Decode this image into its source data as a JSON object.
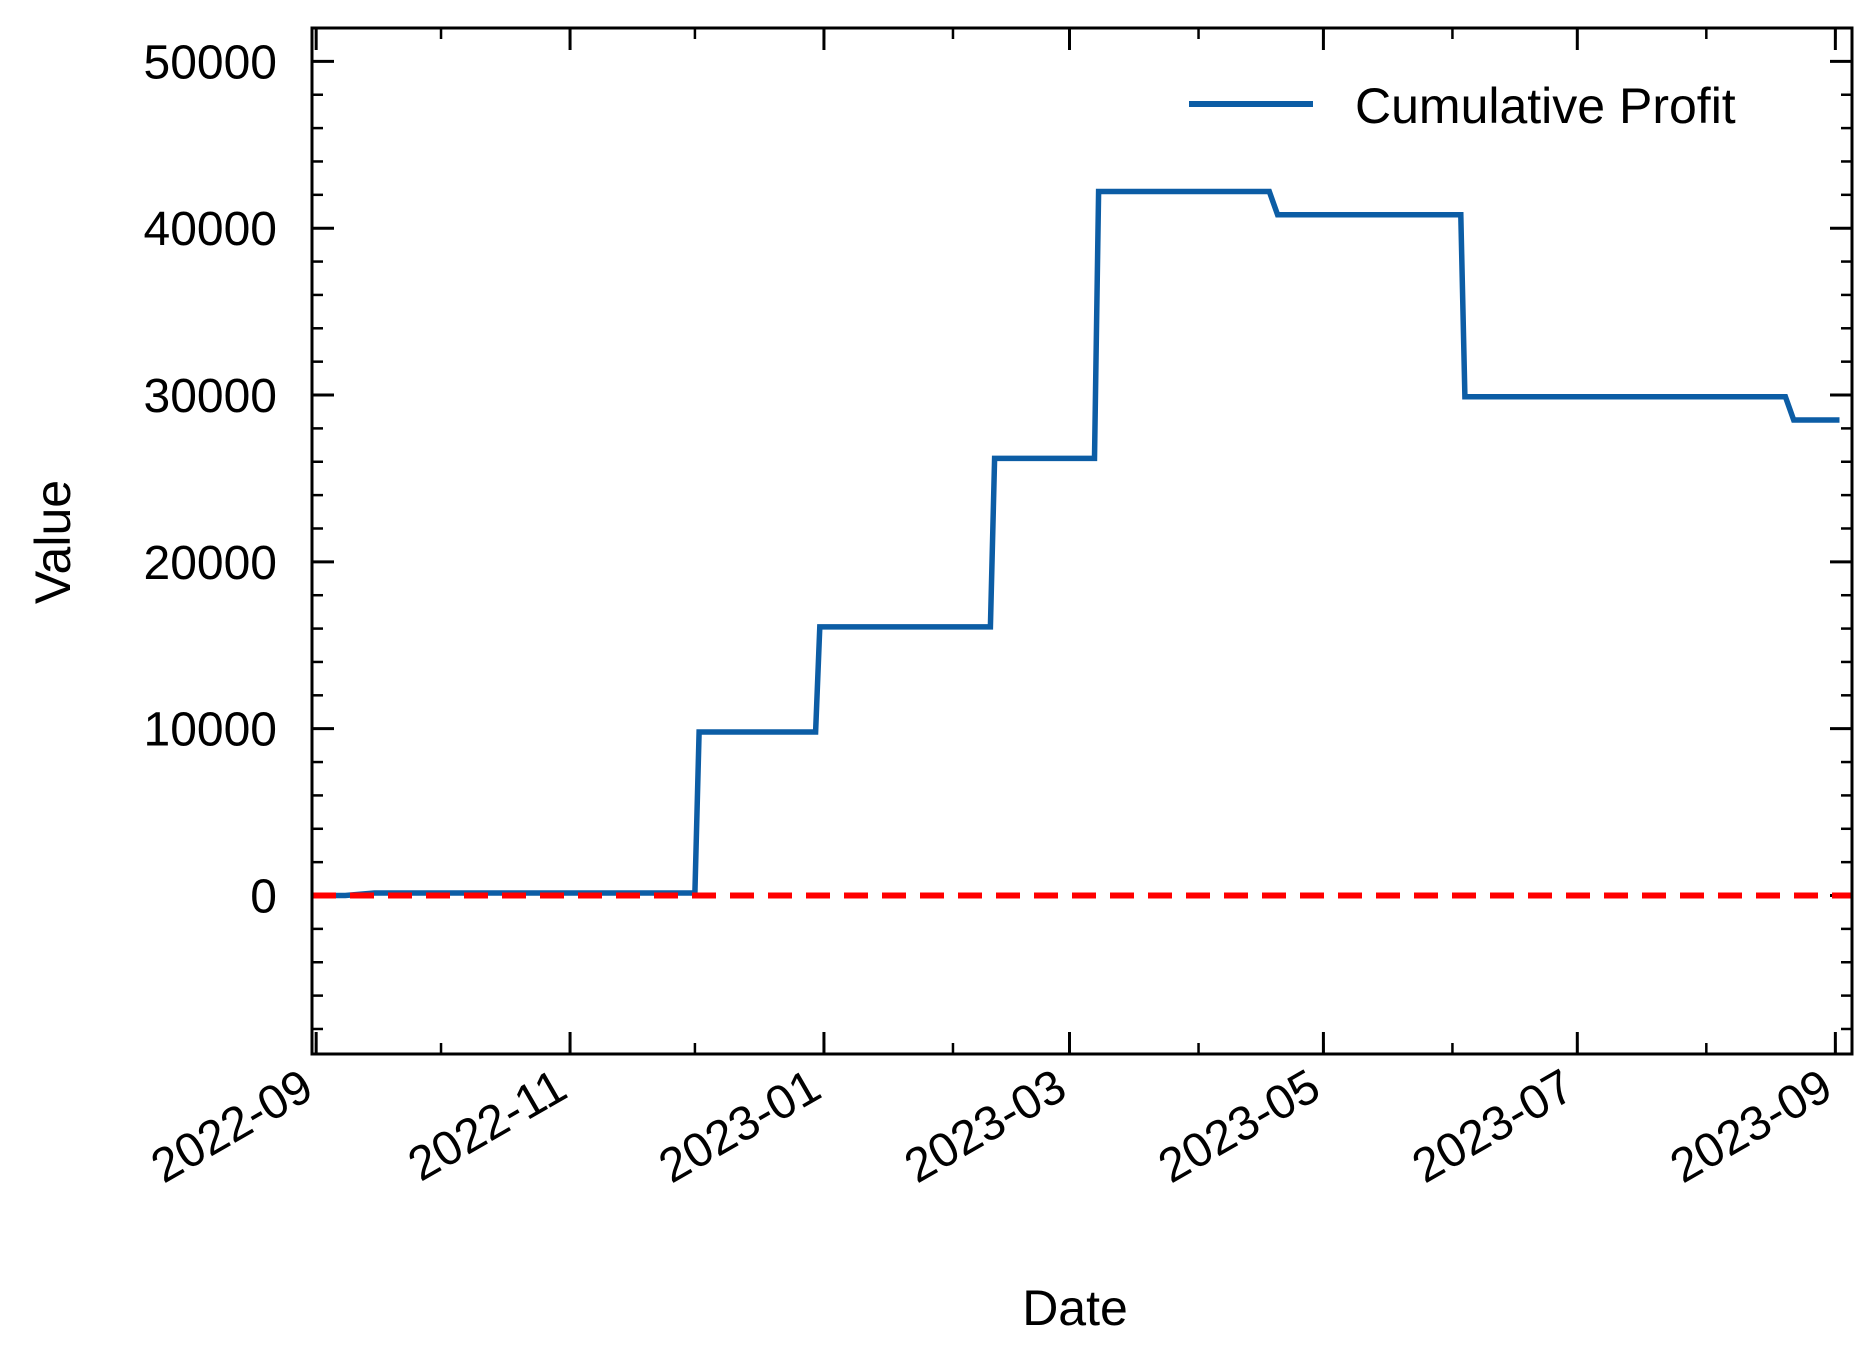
{
  "chart_data": {
    "type": "line",
    "xlabel": "Date",
    "ylabel": "Value",
    "ylim": [
      -9500,
      52000
    ],
    "xlim": [
      "2022-08-31",
      "2023-09-05"
    ],
    "grid": false,
    "legend_position": "top-right",
    "x_ticks": [
      "2022-09",
      "2022-11",
      "2023-01",
      "2023-03",
      "2023-05",
      "2023-07",
      "2023-09"
    ],
    "y_ticks": [
      0,
      10000,
      20000,
      30000,
      40000,
      50000
    ],
    "series": [
      {
        "name": "Cumulative Profit",
        "color": "#0c5da5",
        "style": "solid",
        "x": [
          "2022-09-01",
          "2022-09-08",
          "2022-09-15",
          "2022-12-01",
          "2022-12-02",
          "2022-12-30",
          "2022-12-31",
          "2023-02-10",
          "2023-02-11",
          "2023-03-07",
          "2023-03-08",
          "2023-04-18",
          "2023-04-20",
          "2023-06-03",
          "2023-06-04",
          "2023-08-20",
          "2023-08-22",
          "2023-09-02"
        ],
        "values": [
          0,
          0,
          150,
          150,
          9800,
          9800,
          16100,
          16100,
          26200,
          26200,
          42200,
          42200,
          40800,
          40800,
          29900,
          29900,
          28500,
          28500
        ]
      },
      {
        "name": "",
        "color": "#ff0000",
        "style": "dashed",
        "x": [
          "2022-08-31",
          "2023-09-05"
        ],
        "values": [
          0,
          0
        ]
      }
    ]
  }
}
